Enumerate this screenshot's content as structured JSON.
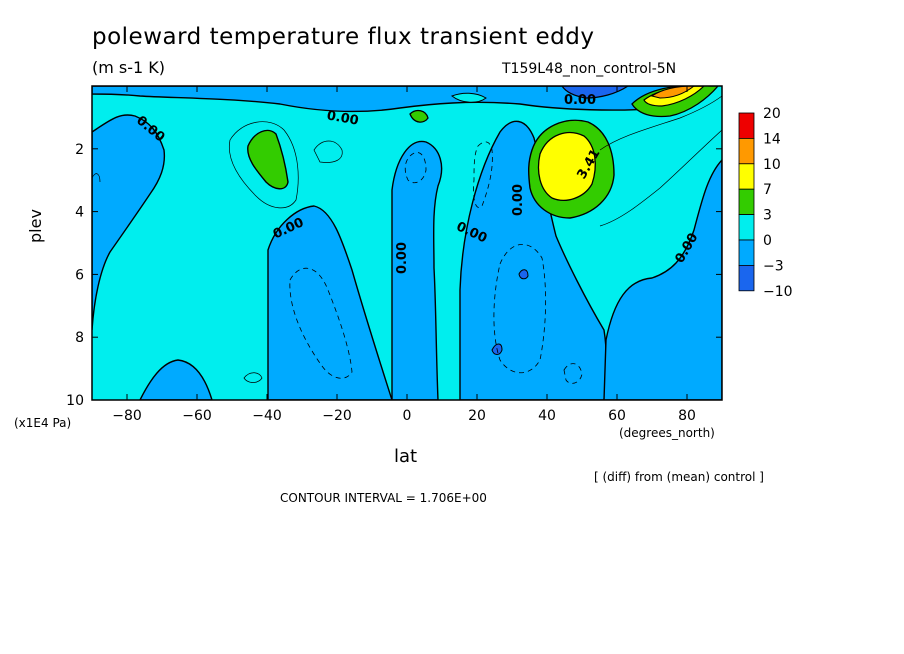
{
  "chart_data": {
    "type": "contour",
    "title": "poleward temperature flux transient eddy",
    "units": "(m s-1 K)",
    "dataset": "T159L48_non_control-5N",
    "xlabel": "lat",
    "ylabel": "plev",
    "x_unit": "(degrees_north)",
    "y_unit": "(x1E4 Pa)",
    "xlim": [
      -90,
      90
    ],
    "ylim": [
      10,
      0
    ],
    "x_ticks": [
      "-80",
      "-60",
      "-40",
      "-20",
      "0",
      "20",
      "40",
      "60",
      "80"
    ],
    "y_ticks": [
      "2",
      "4",
      "6",
      "8",
      "10"
    ],
    "colorbar": {
      "levels": [
        "20",
        "14",
        "10",
        "7",
        "3",
        "0",
        "-3",
        "-10"
      ],
      "colors": [
        "#ee0000",
        "#ff9900",
        "#ffff00",
        "#33cc00",
        "#00eeee",
        "#00aaff",
        "#1a66ee"
      ]
    },
    "contour_labels": [
      "0.00",
      "0.00",
      "0.00",
      "0.00",
      "0.00",
      "0.00",
      "0.00",
      "0.00",
      "3.41"
    ],
    "annotation": "[ (diff) from (mean) control ]",
    "contour_interval": "CONTOUR INTERVAL = 1.706E+00",
    "background_fill": "#00eeee"
  }
}
